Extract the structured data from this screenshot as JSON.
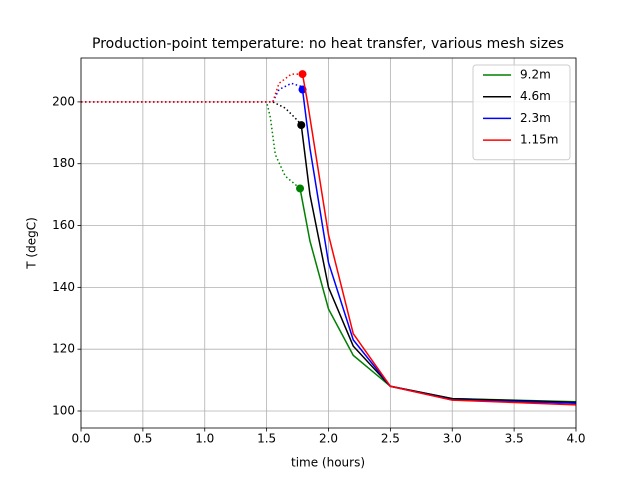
{
  "chart_data": {
    "type": "line",
    "title": "Production-point temperature: no heat transfer, various mesh sizes",
    "x_label": "time (hours)",
    "y_label": "T (degC)",
    "xlim": [
      0,
      4
    ],
    "ylim": [
      94.5,
      214.2
    ],
    "xticks": [
      {
        "value": 0,
        "label": "0.0"
      },
      0.5,
      {
        "value": 1,
        "label": "1.0"
      },
      1.5,
      {
        "value": 2,
        "label": "2.0"
      },
      2.5,
      {
        "value": 3,
        "label": "3.0"
      },
      3.5,
      {
        "value": 4,
        "label": "4.0"
      }
    ],
    "yticks": [
      100,
      120,
      140,
      160,
      180,
      200
    ],
    "grid": true,
    "legend": "upper right",
    "series": [
      {
        "name": "9.2m",
        "color": "#008000",
        "dotted_x": [
          0,
          1.5,
          1.53,
          1.57,
          1.65,
          1.77
        ],
        "dotted_values": [
          200,
          200,
          195,
          183,
          176,
          172
        ],
        "marker_x": 1.77,
        "marker_value": 172,
        "x": [
          1.77,
          1.85,
          2.0,
          2.2,
          2.5,
          3.0,
          4.0
        ],
        "values": [
          172,
          155,
          133,
          118,
          108,
          104,
          103
        ]
      },
      {
        "name": "4.6m",
        "color": "#000000",
        "dotted_x": [
          0,
          1.55,
          1.65,
          1.75,
          1.78
        ],
        "dotted_values": [
          200,
          200,
          198,
          194,
          192.5
        ],
        "marker_x": 1.78,
        "marker_value": 192.5,
        "x": [
          1.78,
          1.85,
          2.0,
          2.2,
          2.5,
          3.0,
          4.0
        ],
        "values": [
          192.5,
          170,
          140,
          121,
          108,
          104,
          102.8
        ]
      },
      {
        "name": "2.3m",
        "color": "#0000ff",
        "dotted_x": [
          0,
          1.55,
          1.6,
          1.7,
          1.78,
          1.79
        ],
        "dotted_values": [
          200,
          200,
          204,
          206,
          205,
          204
        ],
        "marker_x": 1.79,
        "marker_value": 204,
        "x": [
          1.79,
          1.85,
          2.0,
          2.2,
          2.5,
          3.0,
          4.0
        ],
        "values": [
          204,
          185,
          148,
          123,
          108,
          103.6,
          102.5
        ]
      },
      {
        "name": "1.15m",
        "color": "#ff0000",
        "dotted_x": [
          0,
          1.55,
          1.6,
          1.7,
          1.78,
          1.79
        ],
        "dotted_values": [
          200,
          200,
          206,
          209,
          209,
          209
        ],
        "marker_x": 1.79,
        "marker_value": 209,
        "x": [
          1.79,
          1.83,
          2.0,
          2.2,
          2.5,
          3.0,
          4.0
        ],
        "values": [
          209,
          200,
          157,
          125,
          108,
          103.5,
          102
        ]
      }
    ]
  }
}
